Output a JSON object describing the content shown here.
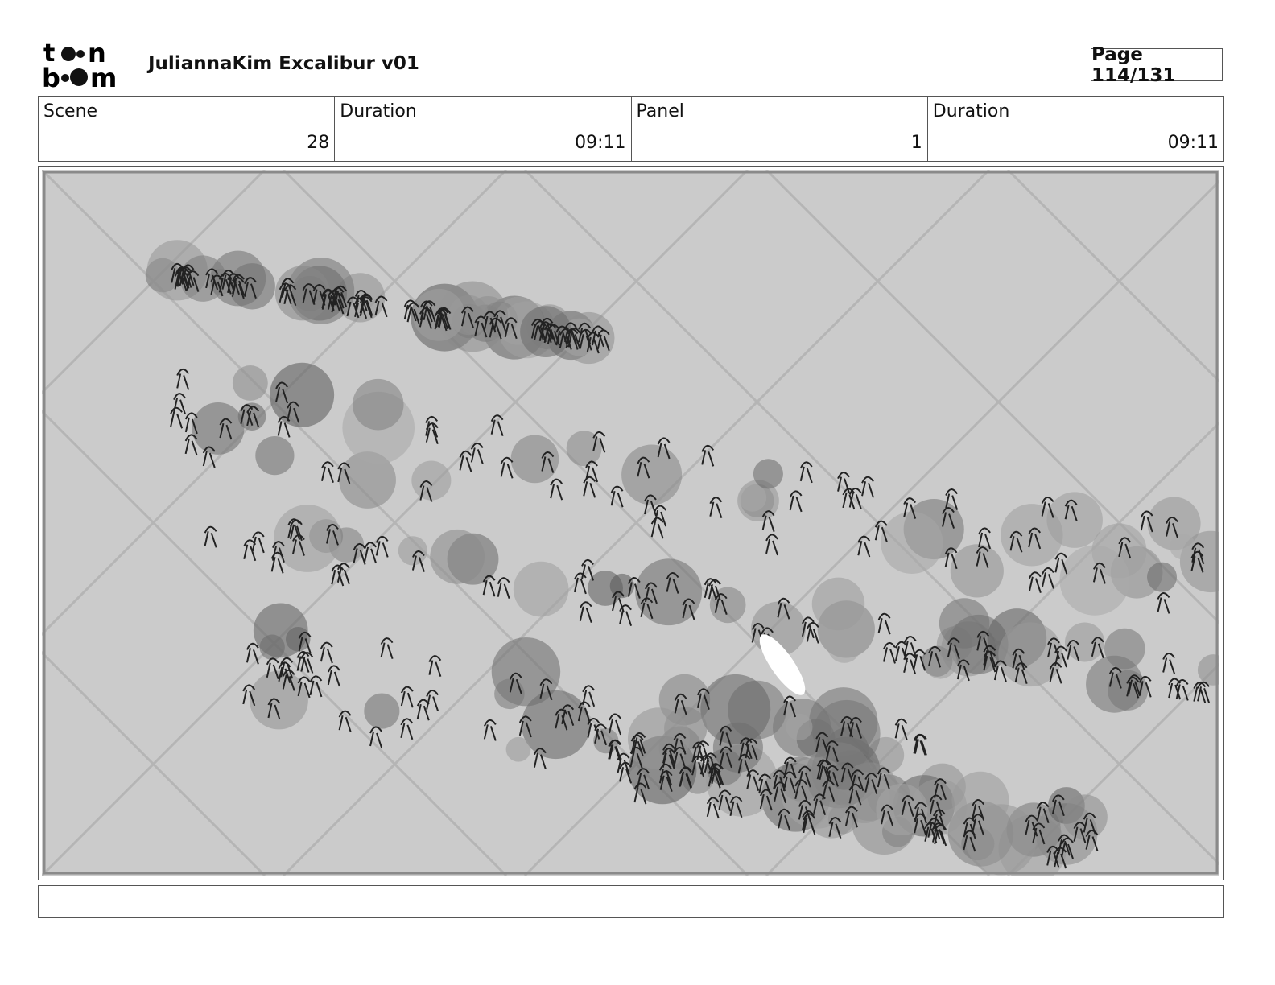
{
  "header": {
    "logo_text": "toon boom",
    "title": "JuliannaKim Excalibur v01",
    "page_label": "Page 114/131"
  },
  "info": [
    {
      "label": "Scene",
      "value": "28"
    },
    {
      "label": "Duration",
      "value": "09:11"
    },
    {
      "label": "Panel",
      "value": "1"
    },
    {
      "label": "Duration",
      "value": "09:11"
    }
  ],
  "panel": {
    "background_color": "#cbcbcb",
    "frame_color": "#8a8a8a"
  },
  "notes": {
    "text": ""
  }
}
